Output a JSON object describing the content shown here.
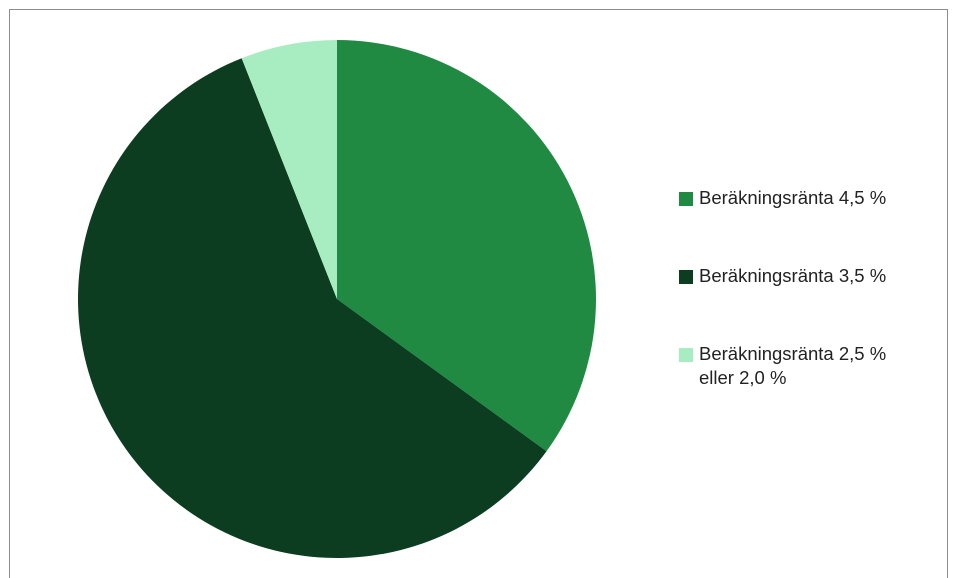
{
  "chart_data": {
    "type": "pie",
    "title": "",
    "categories": [
      "Beräkningsränta 4,5 %",
      "Beräkningsränta 3,5 %",
      "Beräkningsränta 2,5 % eller 2,0 %"
    ],
    "values": [
      35,
      59,
      6
    ],
    "colors": [
      "#208A42",
      "#0C3D21",
      "#A8EDC1"
    ],
    "start_angle_deg": 0,
    "direction": "clockwise",
    "legend_position": "right"
  },
  "legend": {
    "items": [
      {
        "label": "Beräkningsränta 4,5 %",
        "color": "#208A42"
      },
      {
        "label": "Beräkningsränta 3,5 %",
        "color": "#0C3D21"
      },
      {
        "label_line1": "Beräkningsränta 2,5 %",
        "label_line2": "eller 2,0 %",
        "color": "#A8EDC1"
      }
    ]
  }
}
